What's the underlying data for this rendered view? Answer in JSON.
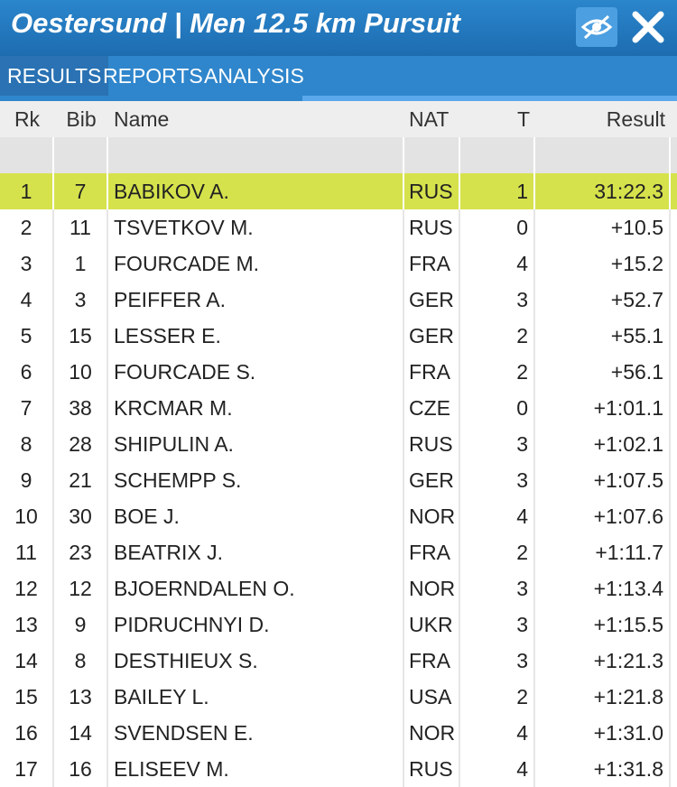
{
  "header": {
    "title": "Oestersund | Men 12.5 km Pursuit"
  },
  "tabs": [
    "RESULTS",
    "REPORTS",
    "ANALYSIS"
  ],
  "table": {
    "columns": [
      "Rk",
      "Bib",
      "Name",
      "NAT",
      "T",
      "Result"
    ],
    "rows": [
      [
        "1",
        "7",
        "BABIKOV A.",
        "RUS",
        "1",
        "31:22.3"
      ],
      [
        "2",
        "11",
        "TSVETKOV M.",
        "RUS",
        "0",
        "+10.5"
      ],
      [
        "3",
        "1",
        "FOURCADE M.",
        "FRA",
        "4",
        "+15.2"
      ],
      [
        "4",
        "3",
        "PEIFFER A.",
        "GER",
        "3",
        "+52.7"
      ],
      [
        "5",
        "15",
        "LESSER E.",
        "GER",
        "2",
        "+55.1"
      ],
      [
        "6",
        "10",
        "FOURCADE S.",
        "FRA",
        "2",
        "+56.1"
      ],
      [
        "7",
        "38",
        "KRCMAR M.",
        "CZE",
        "0",
        "+1:01.1"
      ],
      [
        "8",
        "28",
        "SHIPULIN A.",
        "RUS",
        "3",
        "+1:02.1"
      ],
      [
        "9",
        "21",
        "SCHEMPP S.",
        "GER",
        "3",
        "+1:07.5"
      ],
      [
        "10",
        "30",
        "BOE J.",
        "NOR",
        "4",
        "+1:07.6"
      ],
      [
        "11",
        "23",
        "BEATRIX J.",
        "FRA",
        "2",
        "+1:11.7"
      ],
      [
        "12",
        "12",
        "BJOERNDALEN O.",
        "NOR",
        "3",
        "+1:13.4"
      ],
      [
        "13",
        "9",
        "PIDRUCHNYI D.",
        "UKR",
        "3",
        "+1:15.5"
      ],
      [
        "14",
        "8",
        "DESTHIEUX S.",
        "FRA",
        "3",
        "+1:21.3"
      ],
      [
        "15",
        "13",
        "BAILEY L.",
        "USA",
        "2",
        "+1:21.8"
      ],
      [
        "16",
        "14",
        "SVENDSEN E.",
        "NOR",
        "4",
        "+1:31.0"
      ],
      [
        "17",
        "16",
        "ELISEEV M.",
        "RUS",
        "4",
        "+1:31.8"
      ]
    ]
  }
}
